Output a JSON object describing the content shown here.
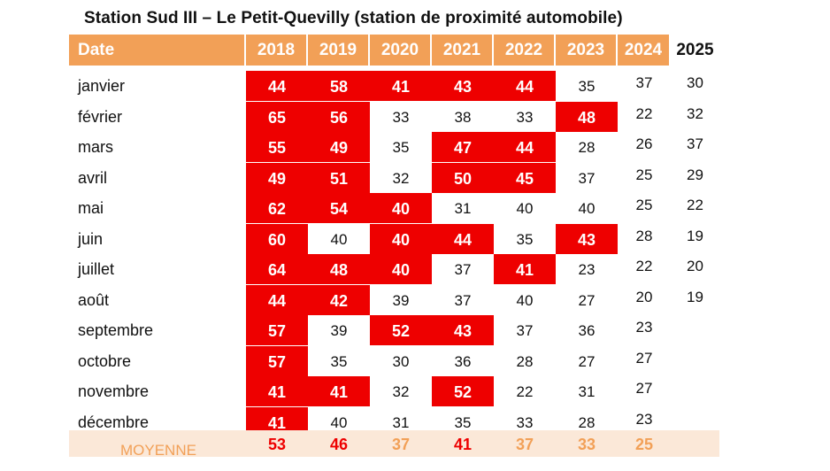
{
  "title": "Station Sud III – Le Petit-Quevilly (station de proximité automobile)",
  "colors": {
    "header_orange": "#f2a057",
    "exceedance_red": "#ee0000",
    "footer_bg": "#fbe8d8"
  },
  "table": {
    "date_header": "Date",
    "years": [
      "2018",
      "2019",
      "2020",
      "2021",
      "2022",
      "2023",
      "2024",
      "2025"
    ],
    "rows": [
      {
        "month": "janvier",
        "values": [
          "44",
          "58",
          "41",
          "43",
          "44",
          "35",
          "37",
          "30"
        ],
        "red": [
          1,
          1,
          1,
          1,
          1,
          0,
          0,
          0
        ]
      },
      {
        "month": "février",
        "values": [
          "65",
          "56",
          "33",
          "38",
          "33",
          "48",
          "22",
          "32"
        ],
        "red": [
          1,
          1,
          0,
          0,
          0,
          1,
          0,
          0
        ]
      },
      {
        "month": "mars",
        "values": [
          "55",
          "49",
          "35",
          "47",
          "44",
          "28",
          "26",
          "37"
        ],
        "red": [
          1,
          1,
          0,
          1,
          1,
          0,
          0,
          0
        ]
      },
      {
        "month": "avril",
        "values": [
          "49",
          "51",
          "32",
          "50",
          "45",
          "37",
          "25",
          "29"
        ],
        "red": [
          1,
          1,
          0,
          1,
          1,
          0,
          0,
          0
        ]
      },
      {
        "month": "mai",
        "values": [
          "62",
          "54",
          "40",
          "31",
          "40",
          "40",
          "25",
          "22"
        ],
        "red": [
          1,
          1,
          1,
          0,
          0,
          0,
          0,
          0
        ]
      },
      {
        "month": "juin",
        "values": [
          "60",
          "40",
          "40",
          "44",
          "35",
          "43",
          "28",
          "19"
        ],
        "red": [
          1,
          0,
          1,
          1,
          0,
          1,
          0,
          0
        ]
      },
      {
        "month": "juillet",
        "values": [
          "64",
          "48",
          "40",
          "37",
          "41",
          "23",
          "22",
          "20"
        ],
        "red": [
          1,
          1,
          1,
          0,
          1,
          0,
          0,
          0
        ]
      },
      {
        "month": "août",
        "values": [
          "44",
          "42",
          "39",
          "37",
          "40",
          "27",
          "20",
          "19"
        ],
        "red": [
          1,
          1,
          0,
          0,
          0,
          0,
          0,
          0
        ]
      },
      {
        "month": "septembre",
        "values": [
          "57",
          "39",
          "52",
          "43",
          "37",
          "36",
          "23",
          ""
        ],
        "red": [
          1,
          0,
          1,
          1,
          0,
          0,
          0,
          0
        ]
      },
      {
        "month": "octobre",
        "values": [
          "57",
          "35",
          "30",
          "36",
          "28",
          "27",
          "27",
          ""
        ],
        "red": [
          1,
          0,
          0,
          0,
          0,
          0,
          0,
          0
        ]
      },
      {
        "month": "novembre",
        "values": [
          "41",
          "41",
          "32",
          "52",
          "22",
          "31",
          "27",
          ""
        ],
        "red": [
          1,
          1,
          0,
          1,
          0,
          0,
          0,
          0
        ]
      },
      {
        "month": "décembre",
        "values": [
          "41",
          "40",
          "31",
          "35",
          "33",
          "28",
          "23",
          ""
        ],
        "red": [
          1,
          0,
          0,
          0,
          0,
          0,
          0,
          0
        ]
      }
    ],
    "footer": {
      "label": "MOYENNE",
      "values": [
        "53",
        "46",
        "37",
        "41",
        "37",
        "33",
        "25"
      ],
      "colors": [
        "#ee0000",
        "#ee0000",
        "#f2a057",
        "#ee0000",
        "#f2a057",
        "#f2a057",
        "#f2a057"
      ]
    }
  }
}
